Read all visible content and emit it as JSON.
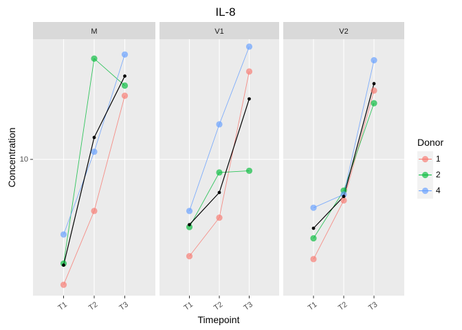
{
  "chart_data": {
    "type": "line",
    "title": "IL-8",
    "xlabel": "Timepoint",
    "ylabel": "Concentration",
    "y_scale": "log10",
    "ylim": [
      4.2,
      21.5
    ],
    "y_ticks": [
      10
    ],
    "grid": true,
    "legend_position": "right",
    "legend_title": "Donor",
    "categories": [
      "T1",
      "T2",
      "T3"
    ],
    "facets": [
      {
        "label": "M",
        "series": [
          {
            "name": "1",
            "values": [
              4.5,
              7.2,
              15.0
            ]
          },
          {
            "name": "2",
            "values": [
              5.15,
              19.0,
              16.0
            ]
          },
          {
            "name": "4",
            "values": [
              6.2,
              10.5,
              19.5
            ]
          }
        ],
        "mean": [
          5.1,
          11.5,
          17.0
        ]
      },
      {
        "label": "V1",
        "series": [
          {
            "name": "1",
            "values": [
              5.4,
              6.9,
              17.5
            ]
          },
          {
            "name": "2",
            "values": [
              6.5,
              9.2,
              9.3
            ]
          },
          {
            "name": "4",
            "values": [
              7.2,
              12.5,
              20.5
            ]
          }
        ],
        "mean": [
          6.6,
          8.1,
          14.7
        ]
      },
      {
        "label": "V2",
        "series": [
          {
            "name": "1",
            "values": [
              5.3,
              7.7,
              15.5
            ]
          },
          {
            "name": "2",
            "values": [
              6.05,
              8.2,
              14.3
            ]
          },
          {
            "name": "4",
            "values": [
              7.35,
              8.0,
              18.8
            ]
          }
        ],
        "mean": [
          6.45,
          7.9,
          16.2
        ]
      }
    ]
  },
  "legend": {
    "title": "Donor",
    "items": [
      {
        "label": "1",
        "color": "#F8766D"
      },
      {
        "label": "2",
        "color": "#00BA38"
      },
      {
        "label": "4",
        "color": "#619CFF"
      }
    ]
  },
  "colors": {
    "panel_bg": "#EBEBEB",
    "strip_bg": "#D9D9D9",
    "grid_major": "#FFFFFF",
    "mean_line": "#000000",
    "series_1": "#F8766D",
    "series_2": "#00BA38",
    "series_4": "#619CFF"
  }
}
